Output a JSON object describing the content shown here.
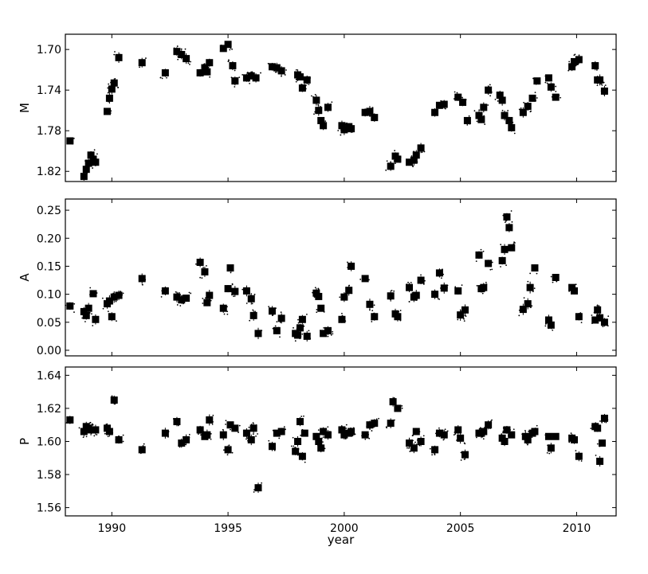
{
  "chart_data": {
    "type": "scatter",
    "xlabel": "year",
    "xlim": [
      1988,
      2011.7
    ],
    "x_ticks": [
      "1990",
      "1995",
      "2000",
      "2005",
      "2010"
    ],
    "panels": [
      {
        "ylabel": "M",
        "ylim": [
          1.83,
          1.685
        ],
        "inverted": true,
        "y_ticks": [
          "1.70",
          "1.74",
          "1.78",
          "1.82"
        ],
        "series": [
          {
            "x": [
              1988.2,
              1988.8,
              1988.9,
              1989.0,
              1989.1,
              1989.2,
              1989.3,
              1989.8,
              1989.9,
              1990.0,
              1990.1,
              1990.3,
              1991.3,
              1992.3,
              1992.8,
              1993.0,
              1993.2,
              1993.8,
              1994.0,
              1994.1,
              1994.2,
              1994.8,
              1995.0,
              1995.2,
              1995.3,
              1995.8,
              1996.0,
              1996.2,
              1996.9,
              1997.1,
              1997.3,
              1998.0,
              1998.1,
              1998.2,
              1998.4,
              1998.8,
              1998.9,
              1999.0,
              1999.1,
              1999.3,
              1999.9,
              2000.0,
              2000.2,
              2000.3,
              2000.9,
              2001.1,
              2001.3,
              2002.0,
              2002.2,
              2002.3,
              2002.8,
              2003.0,
              2003.1,
              2003.3,
              2003.9,
              2004.1,
              2004.3,
              2004.9,
              2005.1,
              2005.3,
              2005.8,
              2005.9,
              2006.0,
              2006.2,
              2006.7,
              2006.8,
              2006.9,
              2007.1,
              2007.2,
              2007.7,
              2007.9,
              2008.1,
              2008.3,
              2008.8,
              2008.9,
              2009.1,
              2009.8,
              2009.9,
              2010.1,
              2010.8,
              2010.9,
              2011.0,
              2011.2
            ],
            "y": [
              1.79,
              1.825,
              1.818,
              1.812,
              1.804,
              1.808,
              1.811,
              1.761,
              1.748,
              1.739,
              1.733,
              1.708,
              1.713,
              1.723,
              1.702,
              1.705,
              1.709,
              1.723,
              1.718,
              1.722,
              1.713,
              1.699,
              1.695,
              1.716,
              1.731,
              1.728,
              1.726,
              1.728,
              1.717,
              1.718,
              1.721,
              1.725,
              1.727,
              1.738,
              1.73,
              1.75,
              1.76,
              1.77,
              1.775,
              1.757,
              1.775,
              1.779,
              1.776,
              1.778,
              1.762,
              1.761,
              1.767,
              1.815,
              1.805,
              1.808,
              1.811,
              1.809,
              1.804,
              1.797,
              1.762,
              1.755,
              1.754,
              1.747,
              1.752,
              1.77,
              1.765,
              1.769,
              1.757,
              1.74,
              1.745,
              1.75,
              1.765,
              1.77,
              1.777,
              1.762,
              1.756,
              1.748,
              1.731,
              1.728,
              1.737,
              1.747,
              1.717,
              1.712,
              1.71,
              1.716,
              1.73,
              1.73,
              1.741
            ]
          }
        ]
      },
      {
        "ylabel": "A",
        "ylim": [
          -0.01,
          0.27
        ],
        "inverted": false,
        "y_ticks": [
          "0.00",
          "0.05",
          "0.10",
          "0.15",
          "0.20",
          "0.25"
        ],
        "series": [
          {
            "x": [
              1988.2,
              1988.8,
              1988.9,
              1989.0,
              1989.2,
              1989.3,
              1989.8,
              1989.9,
              1990.0,
              1990.1,
              1990.3,
              1991.3,
              1992.3,
              1992.8,
              1993.0,
              1993.2,
              1993.8,
              1994.0,
              1994.1,
              1994.2,
              1994.8,
              1995.0,
              1995.1,
              1995.3,
              1995.8,
              1996.0,
              1996.1,
              1996.3,
              1996.9,
              1997.1,
              1997.3,
              1997.9,
              1998.0,
              1998.1,
              1998.2,
              1998.4,
              1998.8,
              1998.9,
              1999.0,
              1999.1,
              1999.3,
              1999.9,
              2000.0,
              2000.2,
              2000.3,
              2000.9,
              2001.1,
              2001.3,
              2002.0,
              2002.2,
              2002.3,
              2002.8,
              2003.0,
              2003.1,
              2003.3,
              2003.9,
              2004.1,
              2004.3,
              2004.9,
              2005.0,
              2005.2,
              2005.8,
              2005.9,
              2006.0,
              2006.2,
              2006.8,
              2006.9,
              2007.0,
              2007.1,
              2007.2,
              2007.7,
              2007.9,
              2008.0,
              2008.2,
              2008.8,
              2008.9,
              2009.1,
              2009.8,
              2009.9,
              2010.1,
              2010.8,
              2010.9,
              2011.0,
              2011.2
            ],
            "y": [
              0.079,
              0.069,
              0.062,
              0.075,
              0.101,
              0.055,
              0.083,
              0.088,
              0.06,
              0.095,
              0.098,
              0.128,
              0.106,
              0.095,
              0.09,
              0.093,
              0.157,
              0.14,
              0.085,
              0.098,
              0.075,
              0.11,
              0.147,
              0.105,
              0.106,
              0.092,
              0.062,
              0.03,
              0.07,
              0.035,
              0.057,
              0.03,
              0.027,
              0.04,
              0.055,
              0.025,
              0.102,
              0.096,
              0.075,
              0.03,
              0.035,
              0.055,
              0.095,
              0.107,
              0.15,
              0.128,
              0.082,
              0.06,
              0.097,
              0.065,
              0.06,
              0.112,
              0.095,
              0.098,
              0.125,
              0.1,
              0.138,
              0.111,
              0.106,
              0.063,
              0.072,
              0.17,
              0.11,
              0.112,
              0.155,
              0.16,
              0.18,
              0.238,
              0.219,
              0.183,
              0.073,
              0.083,
              0.112,
              0.147,
              0.054,
              0.045,
              0.13,
              0.112,
              0.106,
              0.06,
              0.054,
              0.072,
              0.058,
              0.05
            ]
          }
        ]
      },
      {
        "ylabel": "P",
        "ylim": [
          1.555,
          1.645
        ],
        "inverted": false,
        "y_ticks": [
          "1.56",
          "1.58",
          "1.60",
          "1.62",
          "1.64"
        ],
        "series": [
          {
            "x": [
              1988.2,
              1988.8,
              1988.9,
              1989.0,
              1989.1,
              1989.3,
              1989.8,
              1989.9,
              1990.1,
              1990.3,
              1991.3,
              1992.3,
              1992.8,
              1993.0,
              1993.2,
              1993.8,
              1994.0,
              1994.1,
              1994.2,
              1994.8,
              1995.0,
              1995.1,
              1995.3,
              1995.8,
              1996.0,
              1996.1,
              1996.3,
              1996.9,
              1997.1,
              1997.3,
              1997.9,
              1998.0,
              1998.1,
              1998.2,
              1998.3,
              1998.8,
              1998.9,
              1999.0,
              1999.1,
              1999.3,
              1999.9,
              2000.0,
              2000.2,
              2000.3,
              2000.9,
              2001.1,
              2001.3,
              2002.0,
              2002.1,
              2002.3,
              2002.8,
              2003.0,
              2003.1,
              2003.3,
              2003.9,
              2004.1,
              2004.3,
              2004.9,
              2005.0,
              2005.2,
              2005.8,
              2005.9,
              2006.0,
              2006.2,
              2006.8,
              2006.9,
              2007.0,
              2007.2,
              2007.8,
              2007.9,
              2008.1,
              2008.2,
              2008.8,
              2008.9,
              2009.1,
              2009.8,
              2009.9,
              2010.1,
              2010.8,
              2010.9,
              2011.0,
              2011.1,
              2011.2
            ],
            "y": [
              1.613,
              1.606,
              1.609,
              1.608,
              1.607,
              1.607,
              1.608,
              1.606,
              1.625,
              1.601,
              1.595,
              1.605,
              1.612,
              1.599,
              1.601,
              1.607,
              1.603,
              1.604,
              1.613,
              1.604,
              1.595,
              1.61,
              1.608,
              1.605,
              1.601,
              1.608,
              1.572,
              1.597,
              1.605,
              1.606,
              1.594,
              1.6,
              1.612,
              1.591,
              1.605,
              1.603,
              1.6,
              1.596,
              1.606,
              1.604,
              1.607,
              1.604,
              1.605,
              1.606,
              1.604,
              1.61,
              1.611,
              1.611,
              1.624,
              1.62,
              1.599,
              1.596,
              1.606,
              1.6,
              1.595,
              1.605,
              1.604,
              1.607,
              1.602,
              1.592,
              1.605,
              1.605,
              1.606,
              1.61,
              1.602,
              1.6,
              1.607,
              1.604,
              1.603,
              1.601,
              1.605,
              1.606,
              1.603,
              1.596,
              1.603,
              1.602,
              1.601,
              1.591,
              1.609,
              1.608,
              1.588,
              1.599,
              1.614
            ]
          }
        ]
      }
    ]
  }
}
